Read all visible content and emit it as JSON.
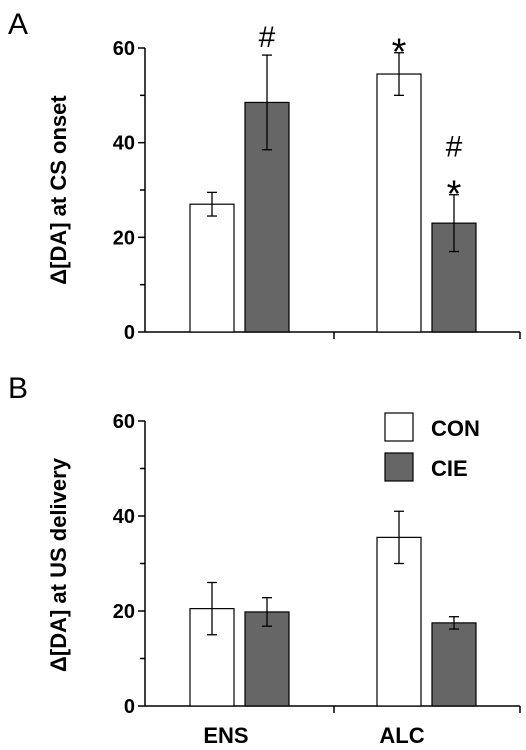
{
  "colors": {
    "CON": "#ffffff",
    "CIE": "#666666",
    "axis": "#000000"
  },
  "chart_data": [
    {
      "type": "bar",
      "panel": "A",
      "ylabel": "Δ[DA] at CS onset",
      "ylim": [
        0,
        60
      ],
      "yticks": [
        0,
        20,
        40,
        60
      ],
      "categories": [
        "ENS",
        "ALC"
      ],
      "show_category_labels": false,
      "series": [
        {
          "name": "CON",
          "values": [
            27,
            54.5
          ],
          "errors": [
            2.5,
            4.5
          ],
          "annotations": [
            "",
            "*"
          ]
        },
        {
          "name": "CIE",
          "values": [
            48.5,
            23
          ],
          "errors": [
            10,
            6
          ],
          "annotations": [
            "#",
            "#*"
          ]
        }
      ],
      "legend": false
    },
    {
      "type": "bar",
      "panel": "B",
      "ylabel": "Δ[DA] at US delivery",
      "ylim": [
        0,
        60
      ],
      "yticks": [
        0,
        20,
        40,
        60
      ],
      "categories": [
        "ENS",
        "ALC"
      ],
      "show_category_labels": true,
      "series": [
        {
          "name": "CON",
          "values": [
            20.5,
            35.5
          ],
          "errors": [
            5.5,
            5.5
          ],
          "annotations": [
            "",
            ""
          ]
        },
        {
          "name": "CIE",
          "values": [
            19.8,
            17.5
          ],
          "errors": [
            3,
            1.3
          ],
          "annotations": [
            "",
            ""
          ]
        }
      ],
      "legend": true,
      "legend_position": "top-right"
    }
  ]
}
